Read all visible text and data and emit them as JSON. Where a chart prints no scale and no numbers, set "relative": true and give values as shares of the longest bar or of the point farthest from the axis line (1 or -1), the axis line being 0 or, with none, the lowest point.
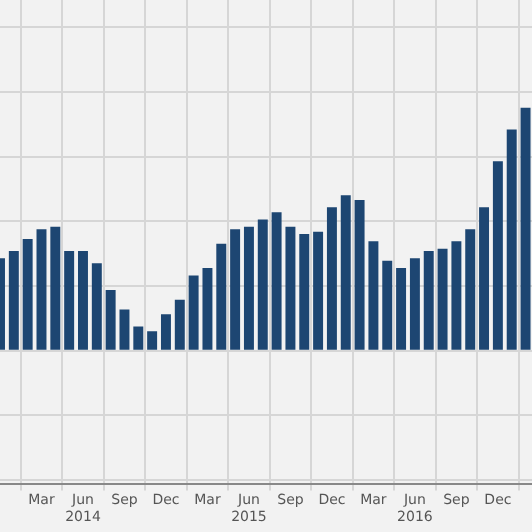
{
  "chart_data": {
    "type": "bar",
    "relative": true,
    "grid": true,
    "legend": false,
    "x": [
      "2013-12",
      "2014-01",
      "2014-02",
      "2014-03",
      "2014-04",
      "2014-05",
      "2014-06",
      "2014-07",
      "2014-08",
      "2014-09",
      "2014-10",
      "2014-11",
      "2014-12",
      "2015-01",
      "2015-02",
      "2015-03",
      "2015-04",
      "2015-05",
      "2015-06",
      "2015-07",
      "2015-08",
      "2015-09",
      "2015-10",
      "2015-11",
      "2015-12",
      "2016-01",
      "2016-02",
      "2016-03",
      "2016-04",
      "2016-05",
      "2016-06",
      "2016-07",
      "2016-08",
      "2016-09",
      "2016-10",
      "2016-11",
      "2016-12",
      "2017-01",
      "2017-02"
    ],
    "values": [
      0.38,
      0.41,
      0.46,
      0.5,
      0.51,
      0.41,
      0.41,
      0.36,
      0.25,
      0.17,
      0.1,
      0.08,
      0.15,
      0.21,
      0.31,
      0.34,
      0.44,
      0.5,
      0.51,
      0.54,
      0.57,
      0.51,
      0.48,
      0.49,
      0.59,
      0.64,
      0.62,
      0.45,
      0.37,
      0.34,
      0.38,
      0.41,
      0.42,
      0.45,
      0.5,
      0.59,
      0.78,
      0.91,
      1
    ],
    "color": "#1d4672",
    "xlim": [
      "2013-12-01",
      "2017-02-15"
    ],
    "xticks": [
      {
        "value": "2014-03",
        "label": "Mar"
      },
      {
        "value": "2014-06",
        "label": "Jun\n2014"
      },
      {
        "value": "2014-09",
        "label": "Sep"
      },
      {
        "value": "2014-12",
        "label": "Dec"
      },
      {
        "value": "2015-03",
        "label": "Mar"
      },
      {
        "value": "2015-06",
        "label": "Jun\n2015"
      },
      {
        "value": "2015-09",
        "label": "Sep"
      },
      {
        "value": "2015-12",
        "label": "Dec"
      },
      {
        "value": "2016-03",
        "label": "Mar"
      },
      {
        "value": "2016-06",
        "label": "Jun\n2016"
      },
      {
        "value": "2016-09",
        "label": "Sep"
      },
      {
        "value": "2016-12",
        "label": "Dec"
      }
    ]
  }
}
